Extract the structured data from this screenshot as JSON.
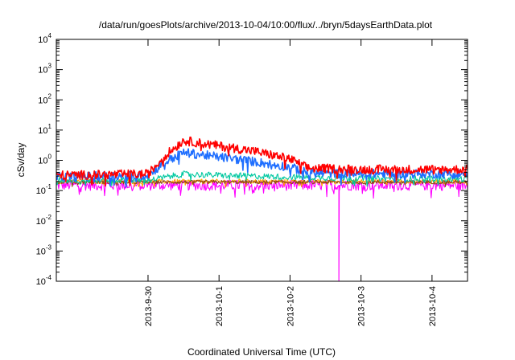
{
  "chart_data": {
    "type": "line",
    "title": "/data/run/goesPlots/archive/2013-10-04/10:00/flux/../bryn/5daysEarthData.plot",
    "xlabel": "Coordinated Universal Time (UTC)",
    "ylabel": "cSv/day",
    "yscale": "log",
    "ylim": [
      0.0001,
      10000
    ],
    "xlim": [
      "2013-09-28T17:00",
      "2013-10-04T12:00"
    ],
    "grid": false,
    "legend": "none",
    "y_ticks": [
      {
        "base": "10",
        "exp": "4"
      },
      {
        "base": "10",
        "exp": "3"
      },
      {
        "base": "10",
        "exp": "2"
      },
      {
        "base": "10",
        "exp": "1"
      },
      {
        "base": "10",
        "exp": "0"
      },
      {
        "base": "10",
        "exp": "-1"
      },
      {
        "base": "10",
        "exp": "-2"
      },
      {
        "base": "10",
        "exp": "-3"
      },
      {
        "base": "10",
        "exp": "-4"
      }
    ],
    "x_tick_labels": [
      "2013-9-30",
      "2013-10-1",
      "2013-10-2",
      "2013-10-3",
      "2013-10-4"
    ],
    "x_tick_dates": [
      "2013-09-30T00:00",
      "2013-10-01T00:00",
      "2013-10-02T00:00",
      "2013-10-03T00:00",
      "2013-10-04T00:00"
    ],
    "series": [
      {
        "color": "#ff00ff",
        "noise": 0.35,
        "x": [
          "2013-09-28T17:00",
          "2013-09-30T00:00",
          "2013-10-01T00:00",
          "2013-10-02T00:00",
          "2013-10-02T16:00",
          "2013-10-03T00:00",
          "2013-10-04T00:00",
          "2013-10-04T12:00"
        ],
        "y": [
          0.15,
          0.15,
          0.15,
          0.15,
          0.15,
          0.15,
          0.15,
          0.15
        ],
        "dropout": "2013-10-02T16:30"
      },
      {
        "color": "#ffa500",
        "noise": 0.15,
        "x": [
          "2013-09-28T17:00",
          "2013-10-04T12:00"
        ],
        "y": [
          0.2,
          0.2
        ]
      },
      {
        "color": "#8b4513",
        "noise": 0.12,
        "x": [
          "2013-09-28T17:00",
          "2013-10-04T12:00"
        ],
        "y": [
          0.19,
          0.19
        ]
      },
      {
        "color": "#00c8a0",
        "noise": 0.2,
        "x": [
          "2013-09-28T17:00",
          "2013-09-30T00:00",
          "2013-09-30T12:00",
          "2013-10-01T00:00",
          "2013-10-02T00:00",
          "2013-10-03T00:00",
          "2013-10-04T12:00"
        ],
        "y": [
          0.22,
          0.22,
          0.35,
          0.32,
          0.28,
          0.25,
          0.24
        ]
      },
      {
        "color": "#1e6eff",
        "noise": 0.3,
        "x": [
          "2013-09-28T17:00",
          "2013-09-30T00:00",
          "2013-09-30T06:00",
          "2013-09-30T12:00",
          "2013-10-01T00:00",
          "2013-10-01T12:00",
          "2013-10-02T00:00",
          "2013-10-02T06:00",
          "2013-10-03T00:00",
          "2013-10-04T12:00"
        ],
        "y": [
          0.28,
          0.32,
          0.9,
          1.8,
          1.3,
          0.9,
          0.6,
          0.38,
          0.36,
          0.36
        ]
      },
      {
        "color": "#ff0000",
        "noise": 0.3,
        "x": [
          "2013-09-28T17:00",
          "2013-09-30T00:00",
          "2013-09-30T06:00",
          "2013-09-30T12:00",
          "2013-10-01T00:00",
          "2013-10-01T12:00",
          "2013-10-02T00:00",
          "2013-10-02T06:00",
          "2013-10-03T00:00",
          "2013-10-04T12:00"
        ],
        "y": [
          0.32,
          0.35,
          1.5,
          4.5,
          3.0,
          2.0,
          1.1,
          0.55,
          0.5,
          0.5
        ]
      }
    ]
  }
}
